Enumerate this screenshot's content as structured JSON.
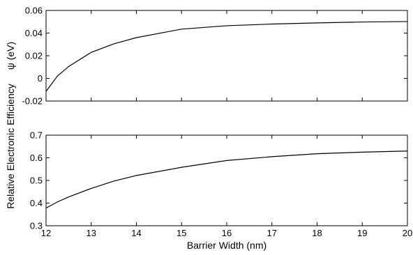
{
  "chart_data": [
    {
      "type": "line",
      "title": "",
      "xlabel": "",
      "ylabel": "ψ (eV)",
      "xlim": [
        12,
        20
      ],
      "ylim": [
        -0.02,
        0.06
      ],
      "xticks": [
        12,
        13,
        14,
        15,
        16,
        17,
        18,
        19,
        20
      ],
      "yticks": [
        "-0.02",
        "0",
        "0.02",
        "0.04",
        "0.06"
      ],
      "grid": false,
      "series": [
        {
          "x": [
            12,
            12.25,
            12.5,
            13,
            13.5,
            14,
            15,
            16,
            17,
            18,
            19,
            20
          ],
          "y": [
            -0.0115,
            0.002,
            0.0105,
            0.023,
            0.0305,
            0.036,
            0.0435,
            0.0465,
            0.048,
            0.049,
            0.0498,
            0.0502
          ]
        }
      ]
    },
    {
      "type": "line",
      "title": "",
      "xlabel": "Barrier Width (nm)",
      "ylabel": "Relative Electronic Efficiency",
      "xlim": [
        12,
        20
      ],
      "ylim": [
        0.3,
        0.7
      ],
      "xticks": [
        "12",
        "13",
        "14",
        "15",
        "16",
        "17",
        "18",
        "19",
        "20"
      ],
      "yticks": [
        "0.3",
        "0.4",
        "0.5",
        "0.6",
        "0.7"
      ],
      "grid": false,
      "series": [
        {
          "x": [
            12,
            12.25,
            12.5,
            13,
            13.5,
            14,
            15,
            16,
            17,
            18,
            19,
            20
          ],
          "y": [
            0.378,
            0.405,
            0.427,
            0.465,
            0.497,
            0.522,
            0.558,
            0.588,
            0.605,
            0.618,
            0.625,
            0.63
          ]
        }
      ]
    }
  ]
}
